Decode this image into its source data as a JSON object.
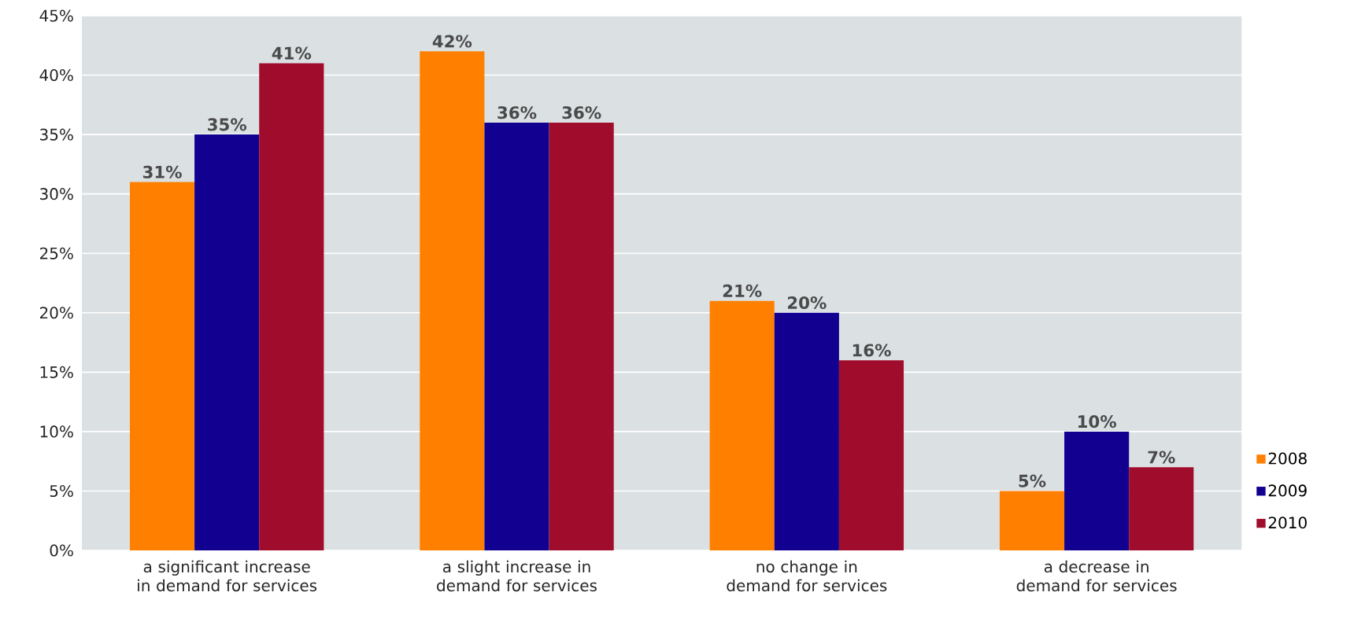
{
  "chart_data": {
    "type": "bar",
    "categories": [
      "a significant increase in demand for services",
      "a slight increase in demand for services",
      "no change in demand for services",
      "a decrease in demand for services"
    ],
    "series": [
      {
        "name": "2008",
        "color": "#ff8000",
        "values": [
          31,
          42,
          21,
          5
        ],
        "value_labels": [
          "31%",
          "42%",
          "21%",
          "5%"
        ]
      },
      {
        "name": "2009",
        "color": "#120090",
        "values": [
          35,
          36,
          20,
          10
        ],
        "value_labels": [
          "35%",
          "36%",
          "20%",
          "10%"
        ]
      },
      {
        "name": "2010",
        "color": "#a00c2c",
        "values": [
          41,
          36,
          16,
          7
        ],
        "value_labels": [
          "41%",
          "36%",
          "16%",
          "7%"
        ]
      }
    ],
    "ylim": [
      0,
      45
    ],
    "yticks": [
      {
        "value": 0,
        "label": "0%"
      },
      {
        "value": 5,
        "label": "5%"
      },
      {
        "value": 10,
        "label": "10%"
      },
      {
        "value": 15,
        "label": "15%"
      },
      {
        "value": 20,
        "label": "20%"
      },
      {
        "value": 25,
        "label": "25%"
      },
      {
        "value": 30,
        "label": "30%"
      },
      {
        "value": 35,
        "label": "35%"
      },
      {
        "value": 40,
        "label": "40%"
      },
      {
        "value": 45,
        "label": "45%"
      }
    ],
    "grid": "y",
    "legend": "right"
  }
}
